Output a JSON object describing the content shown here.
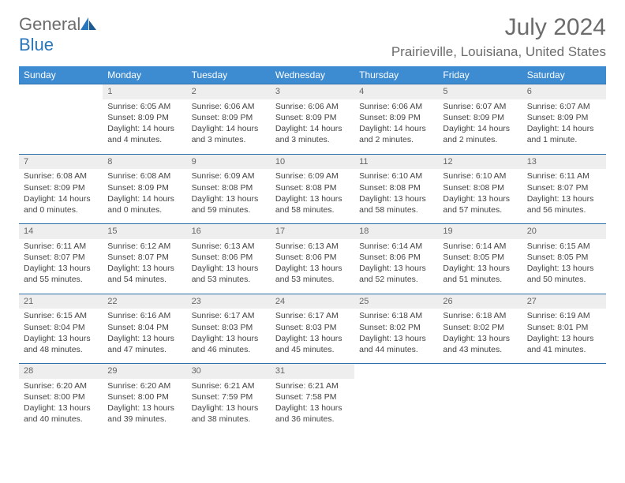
{
  "logo": {
    "word1": "General",
    "word2": "Blue"
  },
  "title": "July 2024",
  "location": "Prairieville, Louisiana, United States",
  "colors": {
    "header_bg": "#3d8bd0",
    "header_text": "#ffffff",
    "daynum_bg": "#eeeeee",
    "daynum_text": "#666666",
    "border": "#2d6fa8",
    "body_text": "#444444",
    "title_text": "#6c6c6c",
    "logo_gray": "#6c6c6c",
    "logo_blue": "#2976bb"
  },
  "fonts": {
    "title_size": 30,
    "location_size": 17,
    "header_size": 12,
    "cell_size": 10.5,
    "daynum_size": 11
  },
  "weekdays": [
    "Sunday",
    "Monday",
    "Tuesday",
    "Wednesday",
    "Thursday",
    "Friday",
    "Saturday"
  ],
  "grid": [
    [
      null,
      1,
      2,
      3,
      4,
      5,
      6
    ],
    [
      7,
      8,
      9,
      10,
      11,
      12,
      13
    ],
    [
      14,
      15,
      16,
      17,
      18,
      19,
      20
    ],
    [
      21,
      22,
      23,
      24,
      25,
      26,
      27
    ],
    [
      28,
      29,
      30,
      31,
      null,
      null,
      null
    ]
  ],
  "days": {
    "1": {
      "sunrise": "6:05 AM",
      "sunset": "8:09 PM",
      "daylight": "14 hours and 4 minutes."
    },
    "2": {
      "sunrise": "6:06 AM",
      "sunset": "8:09 PM",
      "daylight": "14 hours and 3 minutes."
    },
    "3": {
      "sunrise": "6:06 AM",
      "sunset": "8:09 PM",
      "daylight": "14 hours and 3 minutes."
    },
    "4": {
      "sunrise": "6:06 AM",
      "sunset": "8:09 PM",
      "daylight": "14 hours and 2 minutes."
    },
    "5": {
      "sunrise": "6:07 AM",
      "sunset": "8:09 PM",
      "daylight": "14 hours and 2 minutes."
    },
    "6": {
      "sunrise": "6:07 AM",
      "sunset": "8:09 PM",
      "daylight": "14 hours and 1 minute."
    },
    "7": {
      "sunrise": "6:08 AM",
      "sunset": "8:09 PM",
      "daylight": "14 hours and 0 minutes."
    },
    "8": {
      "sunrise": "6:08 AM",
      "sunset": "8:09 PM",
      "daylight": "14 hours and 0 minutes."
    },
    "9": {
      "sunrise": "6:09 AM",
      "sunset": "8:08 PM",
      "daylight": "13 hours and 59 minutes."
    },
    "10": {
      "sunrise": "6:09 AM",
      "sunset": "8:08 PM",
      "daylight": "13 hours and 58 minutes."
    },
    "11": {
      "sunrise": "6:10 AM",
      "sunset": "8:08 PM",
      "daylight": "13 hours and 58 minutes."
    },
    "12": {
      "sunrise": "6:10 AM",
      "sunset": "8:08 PM",
      "daylight": "13 hours and 57 minutes."
    },
    "13": {
      "sunrise": "6:11 AM",
      "sunset": "8:07 PM",
      "daylight": "13 hours and 56 minutes."
    },
    "14": {
      "sunrise": "6:11 AM",
      "sunset": "8:07 PM",
      "daylight": "13 hours and 55 minutes."
    },
    "15": {
      "sunrise": "6:12 AM",
      "sunset": "8:07 PM",
      "daylight": "13 hours and 54 minutes."
    },
    "16": {
      "sunrise": "6:13 AM",
      "sunset": "8:06 PM",
      "daylight": "13 hours and 53 minutes."
    },
    "17": {
      "sunrise": "6:13 AM",
      "sunset": "8:06 PM",
      "daylight": "13 hours and 53 minutes."
    },
    "18": {
      "sunrise": "6:14 AM",
      "sunset": "8:06 PM",
      "daylight": "13 hours and 52 minutes."
    },
    "19": {
      "sunrise": "6:14 AM",
      "sunset": "8:05 PM",
      "daylight": "13 hours and 51 minutes."
    },
    "20": {
      "sunrise": "6:15 AM",
      "sunset": "8:05 PM",
      "daylight": "13 hours and 50 minutes."
    },
    "21": {
      "sunrise": "6:15 AM",
      "sunset": "8:04 PM",
      "daylight": "13 hours and 48 minutes."
    },
    "22": {
      "sunrise": "6:16 AM",
      "sunset": "8:04 PM",
      "daylight": "13 hours and 47 minutes."
    },
    "23": {
      "sunrise": "6:17 AM",
      "sunset": "8:03 PM",
      "daylight": "13 hours and 46 minutes."
    },
    "24": {
      "sunrise": "6:17 AM",
      "sunset": "8:03 PM",
      "daylight": "13 hours and 45 minutes."
    },
    "25": {
      "sunrise": "6:18 AM",
      "sunset": "8:02 PM",
      "daylight": "13 hours and 44 minutes."
    },
    "26": {
      "sunrise": "6:18 AM",
      "sunset": "8:02 PM",
      "daylight": "13 hours and 43 minutes."
    },
    "27": {
      "sunrise": "6:19 AM",
      "sunset": "8:01 PM",
      "daylight": "13 hours and 41 minutes."
    },
    "28": {
      "sunrise": "6:20 AM",
      "sunset": "8:00 PM",
      "daylight": "13 hours and 40 minutes."
    },
    "29": {
      "sunrise": "6:20 AM",
      "sunset": "8:00 PM",
      "daylight": "13 hours and 39 minutes."
    },
    "30": {
      "sunrise": "6:21 AM",
      "sunset": "7:59 PM",
      "daylight": "13 hours and 38 minutes."
    },
    "31": {
      "sunrise": "6:21 AM",
      "sunset": "7:58 PM",
      "daylight": "13 hours and 36 minutes."
    }
  },
  "labels": {
    "sunrise": "Sunrise: ",
    "sunset": "Sunset: ",
    "daylight": "Daylight: "
  }
}
